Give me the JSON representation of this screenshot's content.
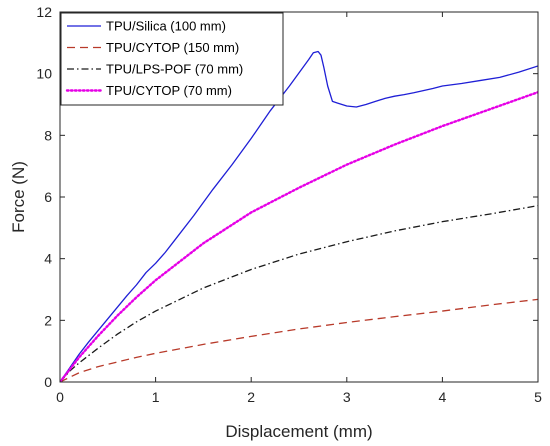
{
  "chart_data": {
    "type": "line",
    "title": "",
    "xlabel": "Displacement (mm)",
    "ylabel": "Force (N)",
    "xlim": [
      0,
      5
    ],
    "ylim": [
      0,
      12
    ],
    "xticks": [
      0,
      1,
      2,
      3,
      4,
      5
    ],
    "yticks": [
      0,
      2,
      4,
      6,
      8,
      10,
      12
    ],
    "grid": false,
    "legend_position": "top-left",
    "series": [
      {
        "name": "TPU/Silica (100 mm)",
        "color": "#1f1fd6",
        "style": "solid",
        "x": [
          0,
          0.1,
          0.2,
          0.3,
          0.5,
          0.7,
          0.8,
          0.9,
          1.0,
          1.1,
          1.2,
          1.4,
          1.6,
          1.8,
          2.0,
          2.2,
          2.4,
          2.6,
          2.65,
          2.7,
          2.73,
          2.76,
          2.8,
          2.85,
          2.9,
          3.0,
          3.1,
          3.2,
          3.3,
          3.4,
          3.5,
          3.6,
          3.7,
          3.8,
          3.9,
          4.0,
          4.2,
          4.4,
          4.6,
          4.8,
          5.0
        ],
        "values": [
          0,
          0.45,
          0.9,
          1.3,
          2.05,
          2.8,
          3.15,
          3.55,
          3.85,
          4.2,
          4.6,
          5.4,
          6.25,
          7.05,
          7.9,
          8.8,
          9.6,
          10.45,
          10.68,
          10.72,
          10.6,
          10.2,
          9.6,
          9.1,
          9.05,
          8.95,
          8.92,
          9.0,
          9.1,
          9.2,
          9.27,
          9.32,
          9.38,
          9.45,
          9.52,
          9.6,
          9.68,
          9.78,
          9.88,
          10.05,
          10.25
        ]
      },
      {
        "name": "TPU/CYTOP (150 mm)",
        "color": "#b83a2a",
        "style": "dashed",
        "x": [
          0,
          0.1,
          0.2,
          0.4,
          0.6,
          0.8,
          1.0,
          1.5,
          2.0,
          2.5,
          3.0,
          3.5,
          4.0,
          4.5,
          5.0
        ],
        "values": [
          0,
          0.15,
          0.3,
          0.5,
          0.65,
          0.8,
          0.93,
          1.22,
          1.48,
          1.72,
          1.93,
          2.12,
          2.3,
          2.5,
          2.68
        ]
      },
      {
        "name": "TPU/LPS-POF (70 mm)",
        "color": "#1a1a1a",
        "style": "dashdot",
        "x": [
          0,
          0.1,
          0.2,
          0.4,
          0.6,
          0.8,
          1.0,
          1.5,
          2.0,
          2.5,
          3.0,
          3.5,
          4.0,
          4.5,
          5.0
        ],
        "values": [
          0,
          0.35,
          0.62,
          1.1,
          1.55,
          1.95,
          2.3,
          3.05,
          3.65,
          4.15,
          4.55,
          4.9,
          5.2,
          5.45,
          5.72
        ]
      },
      {
        "name": "TPU/CYTOP (70 mm)",
        "color": "#e600e6",
        "style": "dotted",
        "x": [
          0,
          0.1,
          0.2,
          0.4,
          0.6,
          0.8,
          1.0,
          1.5,
          2.0,
          2.5,
          3.0,
          3.5,
          4.0,
          4.5,
          5.0
        ],
        "values": [
          0,
          0.4,
          0.8,
          1.5,
          2.15,
          2.75,
          3.3,
          4.5,
          5.5,
          6.3,
          7.05,
          7.7,
          8.3,
          8.85,
          9.4
        ]
      }
    ]
  }
}
